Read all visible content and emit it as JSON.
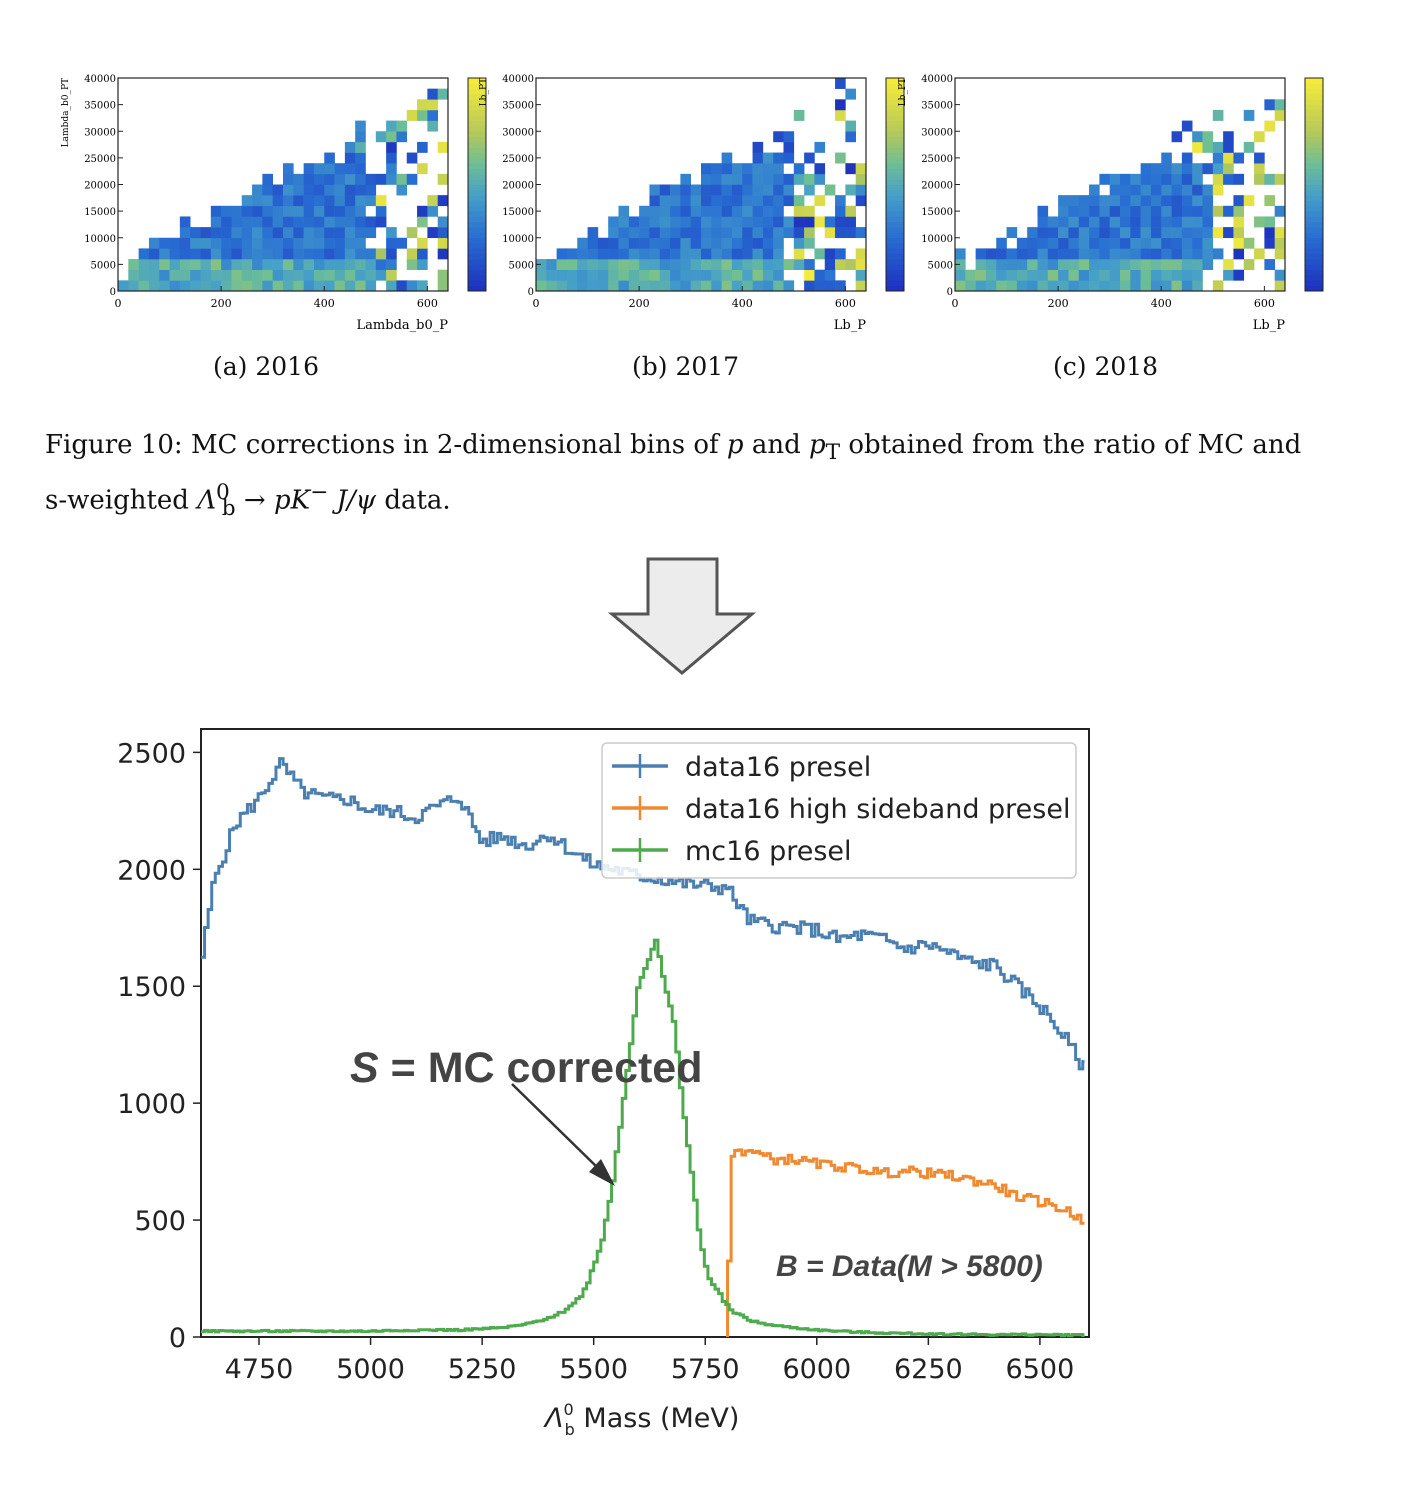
{
  "heatmaps": [
    {
      "caption": "(a) 2016",
      "xlabel": "Lambda_b0_P",
      "ylabel": "Lambda_b0_PT",
      "x_ticks": [
        "0",
        "200",
        "400",
        "600"
      ],
      "y_ticks": [
        "0",
        "5000",
        "10000",
        "15000",
        "20000",
        "25000",
        "30000",
        "35000",
        "40000"
      ],
      "xlim": [
        0,
        640
      ],
      "ylim": [
        0,
        40000
      ],
      "seed": 11
    },
    {
      "caption": "(b) 2017",
      "xlabel": "Lb_P",
      "ylabel": "Lb_PT",
      "x_ticks": [
        "0",
        "200",
        "400",
        "600"
      ],
      "y_ticks": [
        "0",
        "5000",
        "10000",
        "15000",
        "20000",
        "25000",
        "30000",
        "35000",
        "40000"
      ],
      "xlim": [
        0,
        640
      ],
      "ylim": [
        0,
        40000
      ],
      "seed": 23
    },
    {
      "caption": "(c) 2018",
      "xlabel": "Lb_P",
      "ylabel": "Lb_PT",
      "x_ticks": [
        "0",
        "200",
        "400",
        "600"
      ],
      "y_ticks": [
        "0",
        "5000",
        "10000",
        "15000",
        "20000",
        "25000",
        "30000",
        "35000",
        "40000"
      ],
      "xlim": [
        0,
        640
      ],
      "ylim": [
        0,
        40000
      ],
      "seed": 37
    }
  ],
  "caption": {
    "label": "Figure 10:",
    "text_1": "MC corrections in 2-dimensional bins of",
    "p": "p",
    "and": "and",
    "pt": "p",
    "pt_sub": "T",
    "text_2": "obtained from the ratio of MC and",
    "text_3": "s-weighted",
    "decay": "Λ",
    "decay_sup": "0",
    "decay_sub": "b",
    "arrow": "→",
    "decay_rest": "pK",
    "minus": "−",
    "jpsi": "J/ψ",
    "text_4": "data."
  },
  "arrow": {
    "icon": "down-arrow-icon",
    "fill": "#ececec",
    "stroke": "#555555"
  },
  "chart_data": {
    "type": "line",
    "xlabel_main": "Λ",
    "xlabel_sup": "0",
    "xlabel_sub": "b",
    "xlabel_rest": " Mass (MeV)",
    "ylabel": "",
    "xlim": [
      4620,
      6610
    ],
    "ylim": [
      0,
      2600
    ],
    "x_ticks": [
      4750,
      5000,
      5250,
      5500,
      5750,
      6000,
      6250,
      6500
    ],
    "y_ticks": [
      0,
      500,
      1000,
      1500,
      2000,
      2500
    ],
    "grid": false,
    "legend_position": "top-right",
    "series": [
      {
        "name": "data16 presel",
        "color": "#4a7fb0",
        "x": [
          4620,
          4650,
          4700,
          4750,
          4800,
          4850,
          4900,
          4950,
          5000,
          5050,
          5100,
          5150,
          5200,
          5250,
          5300,
          5350,
          5400,
          5450,
          5500,
          5550,
          5600,
          5650,
          5700,
          5750,
          5800,
          5850,
          5900,
          5950,
          6000,
          6050,
          6100,
          6150,
          6200,
          6250,
          6300,
          6350,
          6400,
          6450,
          6500,
          6550,
          6600
        ],
        "values": [
          1580,
          1950,
          2200,
          2300,
          2450,
          2330,
          2300,
          2300,
          2250,
          2250,
          2220,
          2270,
          2310,
          2120,
          2140,
          2100,
          2150,
          2080,
          2020,
          2000,
          1970,
          1960,
          1940,
          1930,
          1920,
          1780,
          1760,
          1750,
          1740,
          1700,
          1720,
          1700,
          1660,
          1680,
          1640,
          1600,
          1590,
          1500,
          1420,
          1300,
          1150
        ]
      },
      {
        "name": "data16 high sideband presel",
        "color": "#f08a30",
        "x": [
          5800,
          5810,
          5850,
          5900,
          5950,
          6000,
          6050,
          6100,
          6150,
          6200,
          6250,
          6300,
          6350,
          6400,
          6450,
          6500,
          6550,
          6600
        ],
        "values": [
          0,
          790,
          800,
          760,
          760,
          740,
          730,
          720,
          700,
          710,
          700,
          690,
          670,
          650,
          600,
          580,
          550,
          500
        ]
      },
      {
        "name": "mc16 presel",
        "color": "#4dab4d",
        "x": [
          4620,
          4700,
          4800,
          4900,
          5000,
          5100,
          5200,
          5300,
          5350,
          5400,
          5450,
          5480,
          5500,
          5520,
          5540,
          5560,
          5580,
          5600,
          5620,
          5640,
          5660,
          5680,
          5700,
          5720,
          5740,
          5760,
          5800,
          5850,
          5900,
          6000,
          6100,
          6200,
          6300,
          6400,
          6500,
          6600
        ],
        "values": [
          25,
          25,
          25,
          25,
          25,
          30,
          30,
          40,
          55,
          80,
          130,
          200,
          300,
          420,
          620,
          900,
          1200,
          1500,
          1600,
          1700,
          1500,
          1350,
          1000,
          700,
          400,
          250,
          130,
          70,
          50,
          30,
          20,
          15,
          12,
          10,
          10,
          8
        ]
      }
    ],
    "annotations": {
      "s_label_italic": "S",
      "s_label_rest": " = MC corrected",
      "b_label": "B = Data(M > 5800)"
    }
  }
}
